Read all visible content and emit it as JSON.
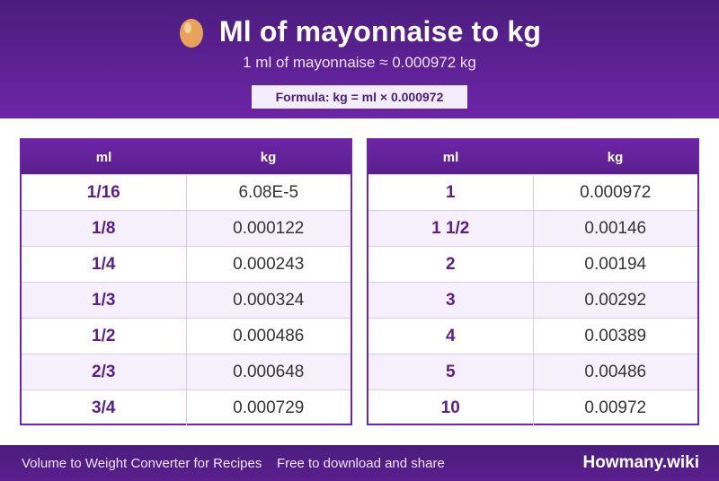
{
  "header": {
    "title": "Ml of mayonnaise to kg",
    "subtitle": "1 ml of mayonnaise ≈ 0.000972 kg",
    "formula": "Formula: kg = ml × 0.000972",
    "icon": "egg-icon"
  },
  "table_left": {
    "col1": "ml",
    "col2": "kg",
    "rows": [
      {
        "ml": "1/16",
        "kg": "6.08E-5"
      },
      {
        "ml": "1/8",
        "kg": "0.000122"
      },
      {
        "ml": "1/4",
        "kg": "0.000243"
      },
      {
        "ml": "1/3",
        "kg": "0.000324"
      },
      {
        "ml": "1/2",
        "kg": "0.000486"
      },
      {
        "ml": "2/3",
        "kg": "0.000648"
      },
      {
        "ml": "3/4",
        "kg": "0.000729"
      }
    ]
  },
  "table_right": {
    "col1": "ml",
    "col2": "kg",
    "rows": [
      {
        "ml": "1",
        "kg": "0.000972"
      },
      {
        "ml": "1 1/2",
        "kg": "0.00146"
      },
      {
        "ml": "2",
        "kg": "0.00194"
      },
      {
        "ml": "3",
        "kg": "0.00292"
      },
      {
        "ml": "4",
        "kg": "0.00389"
      },
      {
        "ml": "5",
        "kg": "0.00486"
      },
      {
        "ml": "10",
        "kg": "0.00972"
      }
    ]
  },
  "footer": {
    "left_text": "Volume to Weight Converter for Recipes",
    "middle_text": "Free to download and share",
    "brand": "Howmany.wiki"
  },
  "colors": {
    "primary": "#6d25a6",
    "dark": "#4b1d7e",
    "row_alt": "#f5f0fb"
  }
}
